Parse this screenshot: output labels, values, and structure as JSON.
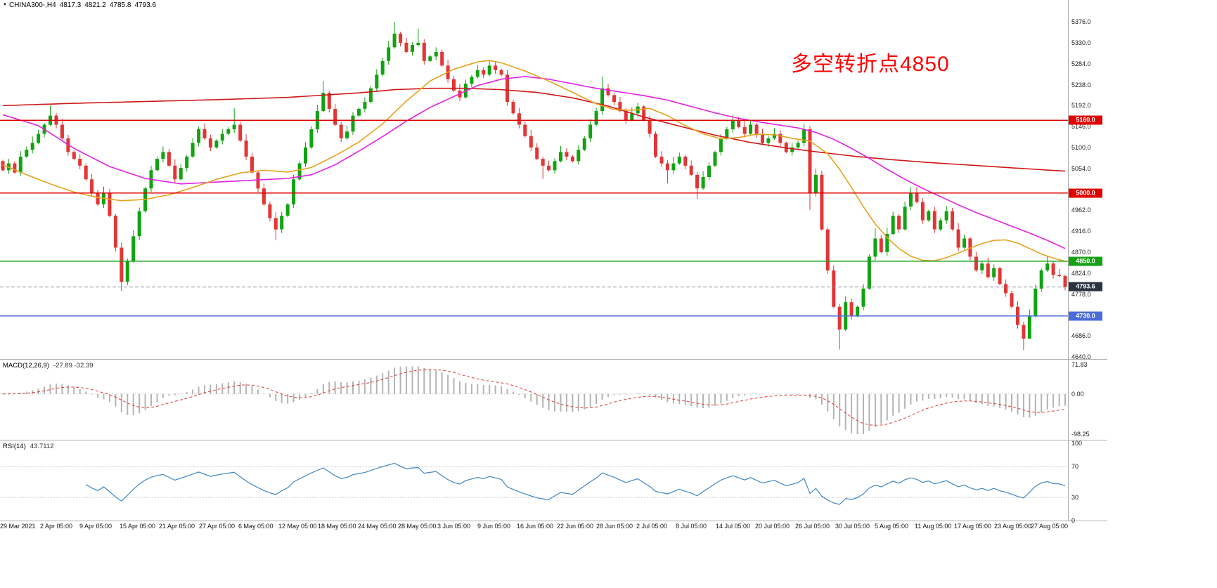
{
  "header": {
    "symbol_period": "CHINA300-,H4",
    "open": "4817.3",
    "high": "4821.2",
    "low": "4785.8",
    "close": "4793.6"
  },
  "annotation": {
    "text": "多空转折点4850",
    "color": "#ff0000"
  },
  "price_axis": {
    "labels": [
      "5376.0",
      "5330.0",
      "5284.0",
      "5238.0",
      "5192.0",
      "5146.0",
      "5100.0",
      "5054.0",
      "4962.0",
      "4916.0",
      "4870.0",
      "4824.0",
      "4778.0",
      "4686.0",
      "4640.0"
    ]
  },
  "time_axis": {
    "labels": [
      "29 Mar 2021",
      "2 Apr 05:00",
      "9 Apr 05:00",
      "15 Apr 05:00",
      "21 Apr 05:00",
      "27 Apr 05:00",
      "6 May 05:00",
      "12 May 05:00",
      "18 May 05:00",
      "24 May 05:00",
      "28 May 05:00",
      "3 Jun 05:00",
      "9 Jun 05:00",
      "16 Jun 05:00",
      "22 Jun 05:00",
      "28 Jun 05:00",
      "2 Jul 05:00",
      "8 Jul 05:00",
      "14 Jul 05:00",
      "20 Jul 05:00",
      "26 Jul 05:00",
      "30 Jul 05:00",
      "5 Aug 05:00",
      "11 Aug 05:00",
      "17 Aug 05:00",
      "23 Aug 05:00",
      "27 Aug 05:00"
    ]
  },
  "indicators": {
    "macd": {
      "label": "MACD(12,26,9)",
      "values_text": "-27.89 -32.39",
      "scale": {
        "max": 71.83,
        "min": -98.25
      },
      "axis_labels": [
        {
          "text": "71.83",
          "value": 71.83
        },
        {
          "text": "0.00",
          "value": 0
        },
        {
          "text": "-98.25",
          "value": -98.25
        }
      ],
      "histogram_color": "#b4b4b4",
      "signal_color": "#e03838"
    },
    "rsi": {
      "label": "RSI(14)",
      "value_text": "43.7112",
      "axis_labels": [
        {
          "text": "100",
          "value": 100
        },
        {
          "text": "70",
          "value": 70
        },
        {
          "text": "30",
          "value": 30
        },
        {
          "text": "0",
          "value": 0
        }
      ],
      "levels": [
        70,
        30
      ],
      "line_color": "#3e86c6"
    }
  },
  "chart_data": {
    "type": "candlestick",
    "symbol": "CHINA300-",
    "timeframe": "H4",
    "title": "CHINA300- H4 candlestick chart with MACD and RSI",
    "ylim": [
      4640,
      5376
    ],
    "grid_step": 46,
    "extreme_high": 5376.0,
    "extreme_low": 4656.0,
    "up_color": "#11a311",
    "down_color": "#e23535",
    "first_open": 5070,
    "closes": [
      5050,
      5065,
      5045,
      5080,
      5095,
      5110,
      5130,
      5150,
      5170,
      5150,
      5120,
      5090,
      5075,
      5060,
      5030,
      5000,
      4975,
      5000,
      4950,
      4880,
      4805,
      4850,
      4905,
      4960,
      5010,
      5050,
      5075,
      5090,
      5060,
      5030,
      5055,
      5080,
      5110,
      5140,
      5120,
      5100,
      5115,
      5130,
      5140,
      5150,
      5115,
      5080,
      5045,
      5010,
      4975,
      4945,
      4920,
      4950,
      4975,
      5030,
      5065,
      5100,
      5140,
      5180,
      5220,
      5185,
      5150,
      5120,
      5135,
      5170,
      5185,
      5200,
      5230,
      5260,
      5290,
      5320,
      5350,
      5330,
      5310,
      5325,
      5330,
      5290,
      5300,
      5310,
      5280,
      5250,
      5225,
      5210,
      5240,
      5255,
      5270,
      5260,
      5280,
      5270,
      5260,
      5200,
      5175,
      5150,
      5125,
      5100,
      5075,
      5060,
      5050,
      5070,
      5090,
      5080,
      5070,
      5095,
      5120,
      5150,
      5180,
      5230,
      5215,
      5200,
      5180,
      5160,
      5175,
      5190,
      5160,
      5130,
      5080,
      5065,
      5050,
      5065,
      5080,
      5060,
      5040,
      5010,
      5035,
      5060,
      5090,
      5120,
      5140,
      5160,
      5145,
      5130,
      5150,
      5130,
      5110,
      5120,
      5130,
      5110,
      5090,
      5100,
      5110,
      5140,
      5000,
      5040,
      4920,
      4830,
      4750,
      4700,
      4760,
      4730,
      4750,
      4790,
      4860,
      4900,
      4870,
      4910,
      4950,
      4920,
      4970,
      5000,
      4980,
      4940,
      4960,
      4920,
      4940,
      4960,
      4920,
      4880,
      4900,
      4860,
      4830,
      4845,
      4815,
      4835,
      4800,
      4780,
      4750,
      4710,
      4680,
      4730,
      4790,
      4830,
      4845,
      4820,
      4817.3,
      4793.6
    ],
    "wick_overrides": {
      "8": {
        "high": 5192
      },
      "20": {
        "low": 4785
      },
      "39": {
        "high": 5186
      },
      "46": {
        "low": 4896
      },
      "54": {
        "high": 5246
      },
      "66": {
        "high": 5376
      },
      "70": {
        "high": 5361
      },
      "91": {
        "low": 5031
      },
      "101": {
        "high": 5256
      },
      "112": {
        "low": 5021
      },
      "117": {
        "low": 4987
      },
      "136": {
        "low": 4963
      },
      "141": {
        "low": 4656
      },
      "147": {
        "high": 4923
      },
      "153": {
        "high": 5013
      },
      "172": {
        "low": 4655
      },
      "173": {
        "low": 4702
      },
      "176": {
        "high": 4861
      },
      "179": {
        "high": 4821.2,
        "low": 4785.8
      }
    },
    "last_bar": {
      "open": 4817.3,
      "high": 4821.2,
      "low": 4785.8,
      "close": 4793.6
    },
    "levels": [
      {
        "price": 5160,
        "label": "5160.0",
        "color": "#e00000"
      },
      {
        "price": 5000,
        "label": "5000.0",
        "color": "#e00000"
      },
      {
        "price": 4850,
        "label": "4850.0",
        "color": "#15a015"
      },
      {
        "price": 4730,
        "label": "4730.0",
        "color": "#4a6cd8"
      }
    ],
    "current_price": {
      "value": 4793.6,
      "label": "4793.6",
      "line_color": "#7c8696",
      "badge_color": "#2b3240"
    },
    "moving_averages": [
      {
        "name": "ma-slow-red",
        "color": "#d01818",
        "anchors": [
          [
            0,
            5192
          ],
          [
            12,
            5197
          ],
          [
            24,
            5201
          ],
          [
            36,
            5205
          ],
          [
            48,
            5210
          ],
          [
            60,
            5220
          ],
          [
            66,
            5227
          ],
          [
            72,
            5230
          ],
          [
            78,
            5230
          ],
          [
            84,
            5227
          ],
          [
            90,
            5221
          ],
          [
            96,
            5209
          ],
          [
            102,
            5191
          ],
          [
            108,
            5167
          ],
          [
            114,
            5147
          ],
          [
            120,
            5127
          ],
          [
            126,
            5111
          ],
          [
            132,
            5099
          ],
          [
            138,
            5089
          ],
          [
            144,
            5080
          ],
          [
            150,
            5073
          ],
          [
            156,
            5067
          ],
          [
            162,
            5062
          ],
          [
            168,
            5057
          ],
          [
            174,
            5052
          ],
          [
            179,
            5048
          ]
        ]
      },
      {
        "name": "ma-mid-magenta",
        "color": "#e321e3",
        "anchors": [
          [
            0,
            5172
          ],
          [
            6,
            5148
          ],
          [
            12,
            5098
          ],
          [
            18,
            5058
          ],
          [
            24,
            5032
          ],
          [
            30,
            5020
          ],
          [
            36,
            5024
          ],
          [
            42,
            5028
          ],
          [
            48,
            5032
          ],
          [
            52,
            5040
          ],
          [
            56,
            5062
          ],
          [
            60,
            5092
          ],
          [
            64,
            5124
          ],
          [
            68,
            5158
          ],
          [
            72,
            5188
          ],
          [
            76,
            5212
          ],
          [
            80,
            5236
          ],
          [
            84,
            5250
          ],
          [
            88,
            5256
          ],
          [
            92,
            5250
          ],
          [
            96,
            5240
          ],
          [
            100,
            5230
          ],
          [
            104,
            5222
          ],
          [
            108,
            5214
          ],
          [
            112,
            5204
          ],
          [
            116,
            5190
          ],
          [
            120,
            5176
          ],
          [
            124,
            5164
          ],
          [
            128,
            5155
          ],
          [
            131,
            5149
          ],
          [
            134,
            5143
          ],
          [
            137,
            5133
          ],
          [
            140,
            5118
          ],
          [
            143,
            5098
          ],
          [
            146,
            5076
          ],
          [
            149,
            5052
          ],
          [
            152,
            5030
          ],
          [
            155,
            5010
          ],
          [
            158,
            4992
          ],
          [
            161,
            4974
          ],
          [
            164,
            4957
          ],
          [
            167,
            4942
          ],
          [
            170,
            4927
          ],
          [
            173,
            4912
          ],
          [
            176,
            4896
          ],
          [
            179,
            4878
          ]
        ]
      },
      {
        "name": "ma-fast-orange",
        "color": "#e8a21c",
        "anchors": [
          [
            0,
            5062
          ],
          [
            4,
            5040
          ],
          [
            8,
            5020
          ],
          [
            12,
            5002
          ],
          [
            16,
            4990
          ],
          [
            20,
            4983
          ],
          [
            24,
            4986
          ],
          [
            28,
            4996
          ],
          [
            32,
            5012
          ],
          [
            36,
            5030
          ],
          [
            40,
            5044
          ],
          [
            44,
            5050
          ],
          [
            48,
            5046
          ],
          [
            52,
            5056
          ],
          [
            56,
            5082
          ],
          [
            60,
            5112
          ],
          [
            64,
            5152
          ],
          [
            68,
            5202
          ],
          [
            72,
            5246
          ],
          [
            76,
            5272
          ],
          [
            80,
            5288
          ],
          [
            82,
            5291
          ],
          [
            84,
            5286
          ],
          [
            88,
            5268
          ],
          [
            92,
            5246
          ],
          [
            96,
            5221
          ],
          [
            100,
            5196
          ],
          [
            103,
            5183
          ],
          [
            106,
            5182
          ],
          [
            109,
            5186
          ],
          [
            112,
            5170
          ],
          [
            115,
            5148
          ],
          [
            118,
            5130
          ],
          [
            121,
            5119
          ],
          [
            124,
            5122
          ],
          [
            127,
            5129
          ],
          [
            130,
            5128
          ],
          [
            133,
            5120
          ],
          [
            136,
            5114
          ],
          [
            139,
            5086
          ],
          [
            141,
            5052
          ],
          [
            143,
            5012
          ],
          [
            145,
            4970
          ],
          [
            147,
            4932
          ],
          [
            149,
            4902
          ],
          [
            151,
            4878
          ],
          [
            153,
            4861
          ],
          [
            155,
            4852
          ],
          [
            157,
            4851
          ],
          [
            159,
            4858
          ],
          [
            161,
            4868
          ],
          [
            163,
            4879
          ],
          [
            165,
            4889
          ],
          [
            167,
            4896
          ],
          [
            169,
            4897
          ],
          [
            171,
            4890
          ],
          [
            173,
            4878
          ],
          [
            175,
            4866
          ],
          [
            177,
            4857
          ],
          [
            179,
            4850
          ]
        ]
      }
    ]
  }
}
